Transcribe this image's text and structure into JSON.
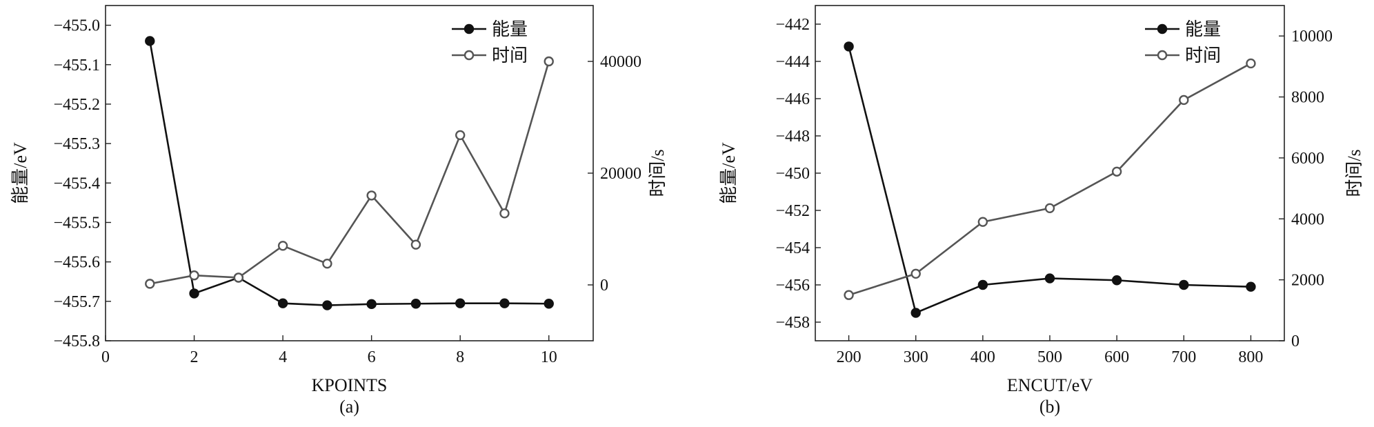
{
  "chart_data": [
    {
      "type": "line",
      "panel_label": "(a)",
      "xlabel": "KPOINTS",
      "ylabel": "能量/eV",
      "y2label": "时间/s",
      "xlim": [
        0,
        11
      ],
      "ylim": [
        -455.8,
        -454.95
      ],
      "y2lim": [
        -10000,
        50000
      ],
      "xticks": [
        0,
        2,
        4,
        6,
        8,
        10
      ],
      "yticks": [
        -455.8,
        -455.7,
        -455.6,
        -455.5,
        -455.4,
        -455.3,
        -455.2,
        -455.1,
        -455.0
      ],
      "yticklabels": [
        "−455.8",
        "−455.7",
        "−455.6",
        "−455.5",
        "−455.4",
        "−455.3",
        "−455.2",
        "−455.1",
        "−455.0"
      ],
      "y2ticks": [
        0,
        20000,
        40000
      ],
      "y2ticklabels": [
        "0",
        "20000",
        "40000"
      ],
      "legend_position": "top-right",
      "grid": false,
      "x": [
        1,
        2,
        3,
        4,
        5,
        6,
        7,
        8,
        9,
        10
      ],
      "series": [
        {
          "name": "能量",
          "axis": "left",
          "marker": "filled-circle",
          "color": "#111111",
          "values": [
            -455.04,
            -455.68,
            -455.64,
            -455.705,
            -455.71,
            -455.707,
            -455.706,
            -455.705,
            -455.705,
            -455.706
          ]
        },
        {
          "name": "时间",
          "axis": "right",
          "marker": "open-circle",
          "color": "#555555",
          "values": [
            200,
            1700,
            1300,
            7000,
            3800,
            16000,
            7200,
            26800,
            12800,
            40000
          ]
        }
      ]
    },
    {
      "type": "line",
      "panel_label": "(b)",
      "xlabel": "ENCUT/eV",
      "ylabel": "能量/eV",
      "y2label": "时间/s",
      "xlim": [
        150,
        850
      ],
      "ylim": [
        -459,
        -441
      ],
      "y2lim": [
        0,
        11000
      ],
      "xticks": [
        200,
        300,
        400,
        500,
        600,
        700,
        800
      ],
      "yticks": [
        -458,
        -456,
        -454,
        -452,
        -450,
        -448,
        -446,
        -444,
        -442
      ],
      "yticklabels": [
        "−458",
        "−456",
        "−454",
        "−452",
        "−450",
        "−448",
        "−446",
        "−444",
        "−442"
      ],
      "y2ticks": [
        0,
        2000,
        4000,
        6000,
        8000,
        10000
      ],
      "y2ticklabels": [
        "0",
        "2000",
        "4000",
        "6000",
        "8000",
        "10000"
      ],
      "legend_position": "top-right",
      "grid": false,
      "x": [
        200,
        300,
        400,
        500,
        600,
        700,
        800
      ],
      "series": [
        {
          "name": "能量",
          "axis": "left",
          "marker": "filled-circle",
          "color": "#111111",
          "values": [
            -443.2,
            -457.5,
            -456.0,
            -455.65,
            -455.75,
            -456.0,
            -456.1
          ]
        },
        {
          "name": "时间",
          "axis": "right",
          "marker": "open-circle",
          "color": "#555555",
          "values": [
            1500,
            2200,
            3900,
            4350,
            5550,
            7900,
            9100
          ]
        }
      ]
    }
  ]
}
